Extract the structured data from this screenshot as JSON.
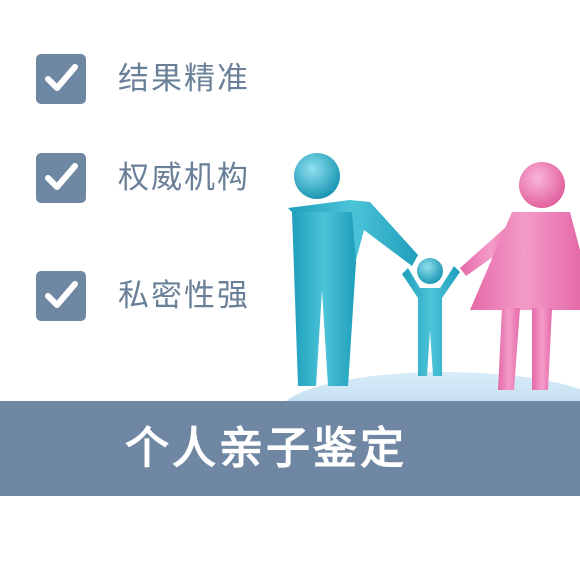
{
  "features": [
    {
      "label": "结果精准",
      "icon": "checkmark-icon"
    },
    {
      "label": "权威机构",
      "icon": "checkmark-icon"
    },
    {
      "label": "私密性强",
      "icon": "checkmark-icon"
    }
  ],
  "illustration": {
    "subject": "family-figures",
    "father_color": "#2fb0c9",
    "mother_color": "#ea78b4",
    "child_color": "#2fb0c9"
  },
  "banner": {
    "title": "个人亲子鉴定"
  },
  "colors": {
    "check_box": "#6e87a2",
    "label_text": "#6a7f98",
    "banner_bg": "#6f87a3",
    "background": "#ffffff"
  }
}
